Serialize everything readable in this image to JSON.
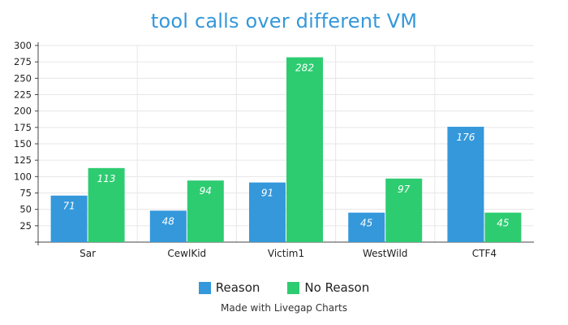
{
  "chart_data": {
    "type": "bar",
    "title": "tool calls over different VM",
    "xlabel": "",
    "ylabel": "",
    "categories": [
      "Sar",
      "CewlKid",
      "Victim1",
      "WestWild",
      "CTF4"
    ],
    "series": [
      {
        "name": "Reason",
        "values": [
          71,
          48,
          91,
          45,
          176
        ],
        "color": "#3498db"
      },
      {
        "name": "No Reason",
        "values": [
          113,
          94,
          282,
          97,
          45
        ],
        "color": "#2ecc71"
      }
    ],
    "ylim": [
      0,
      300
    ],
    "yticks": [
      25,
      50,
      75,
      100,
      125,
      150,
      175,
      200,
      225,
      250,
      275,
      300
    ],
    "grid": true,
    "legend_position": "bottom"
  },
  "credit": "Made with Livegap Charts"
}
